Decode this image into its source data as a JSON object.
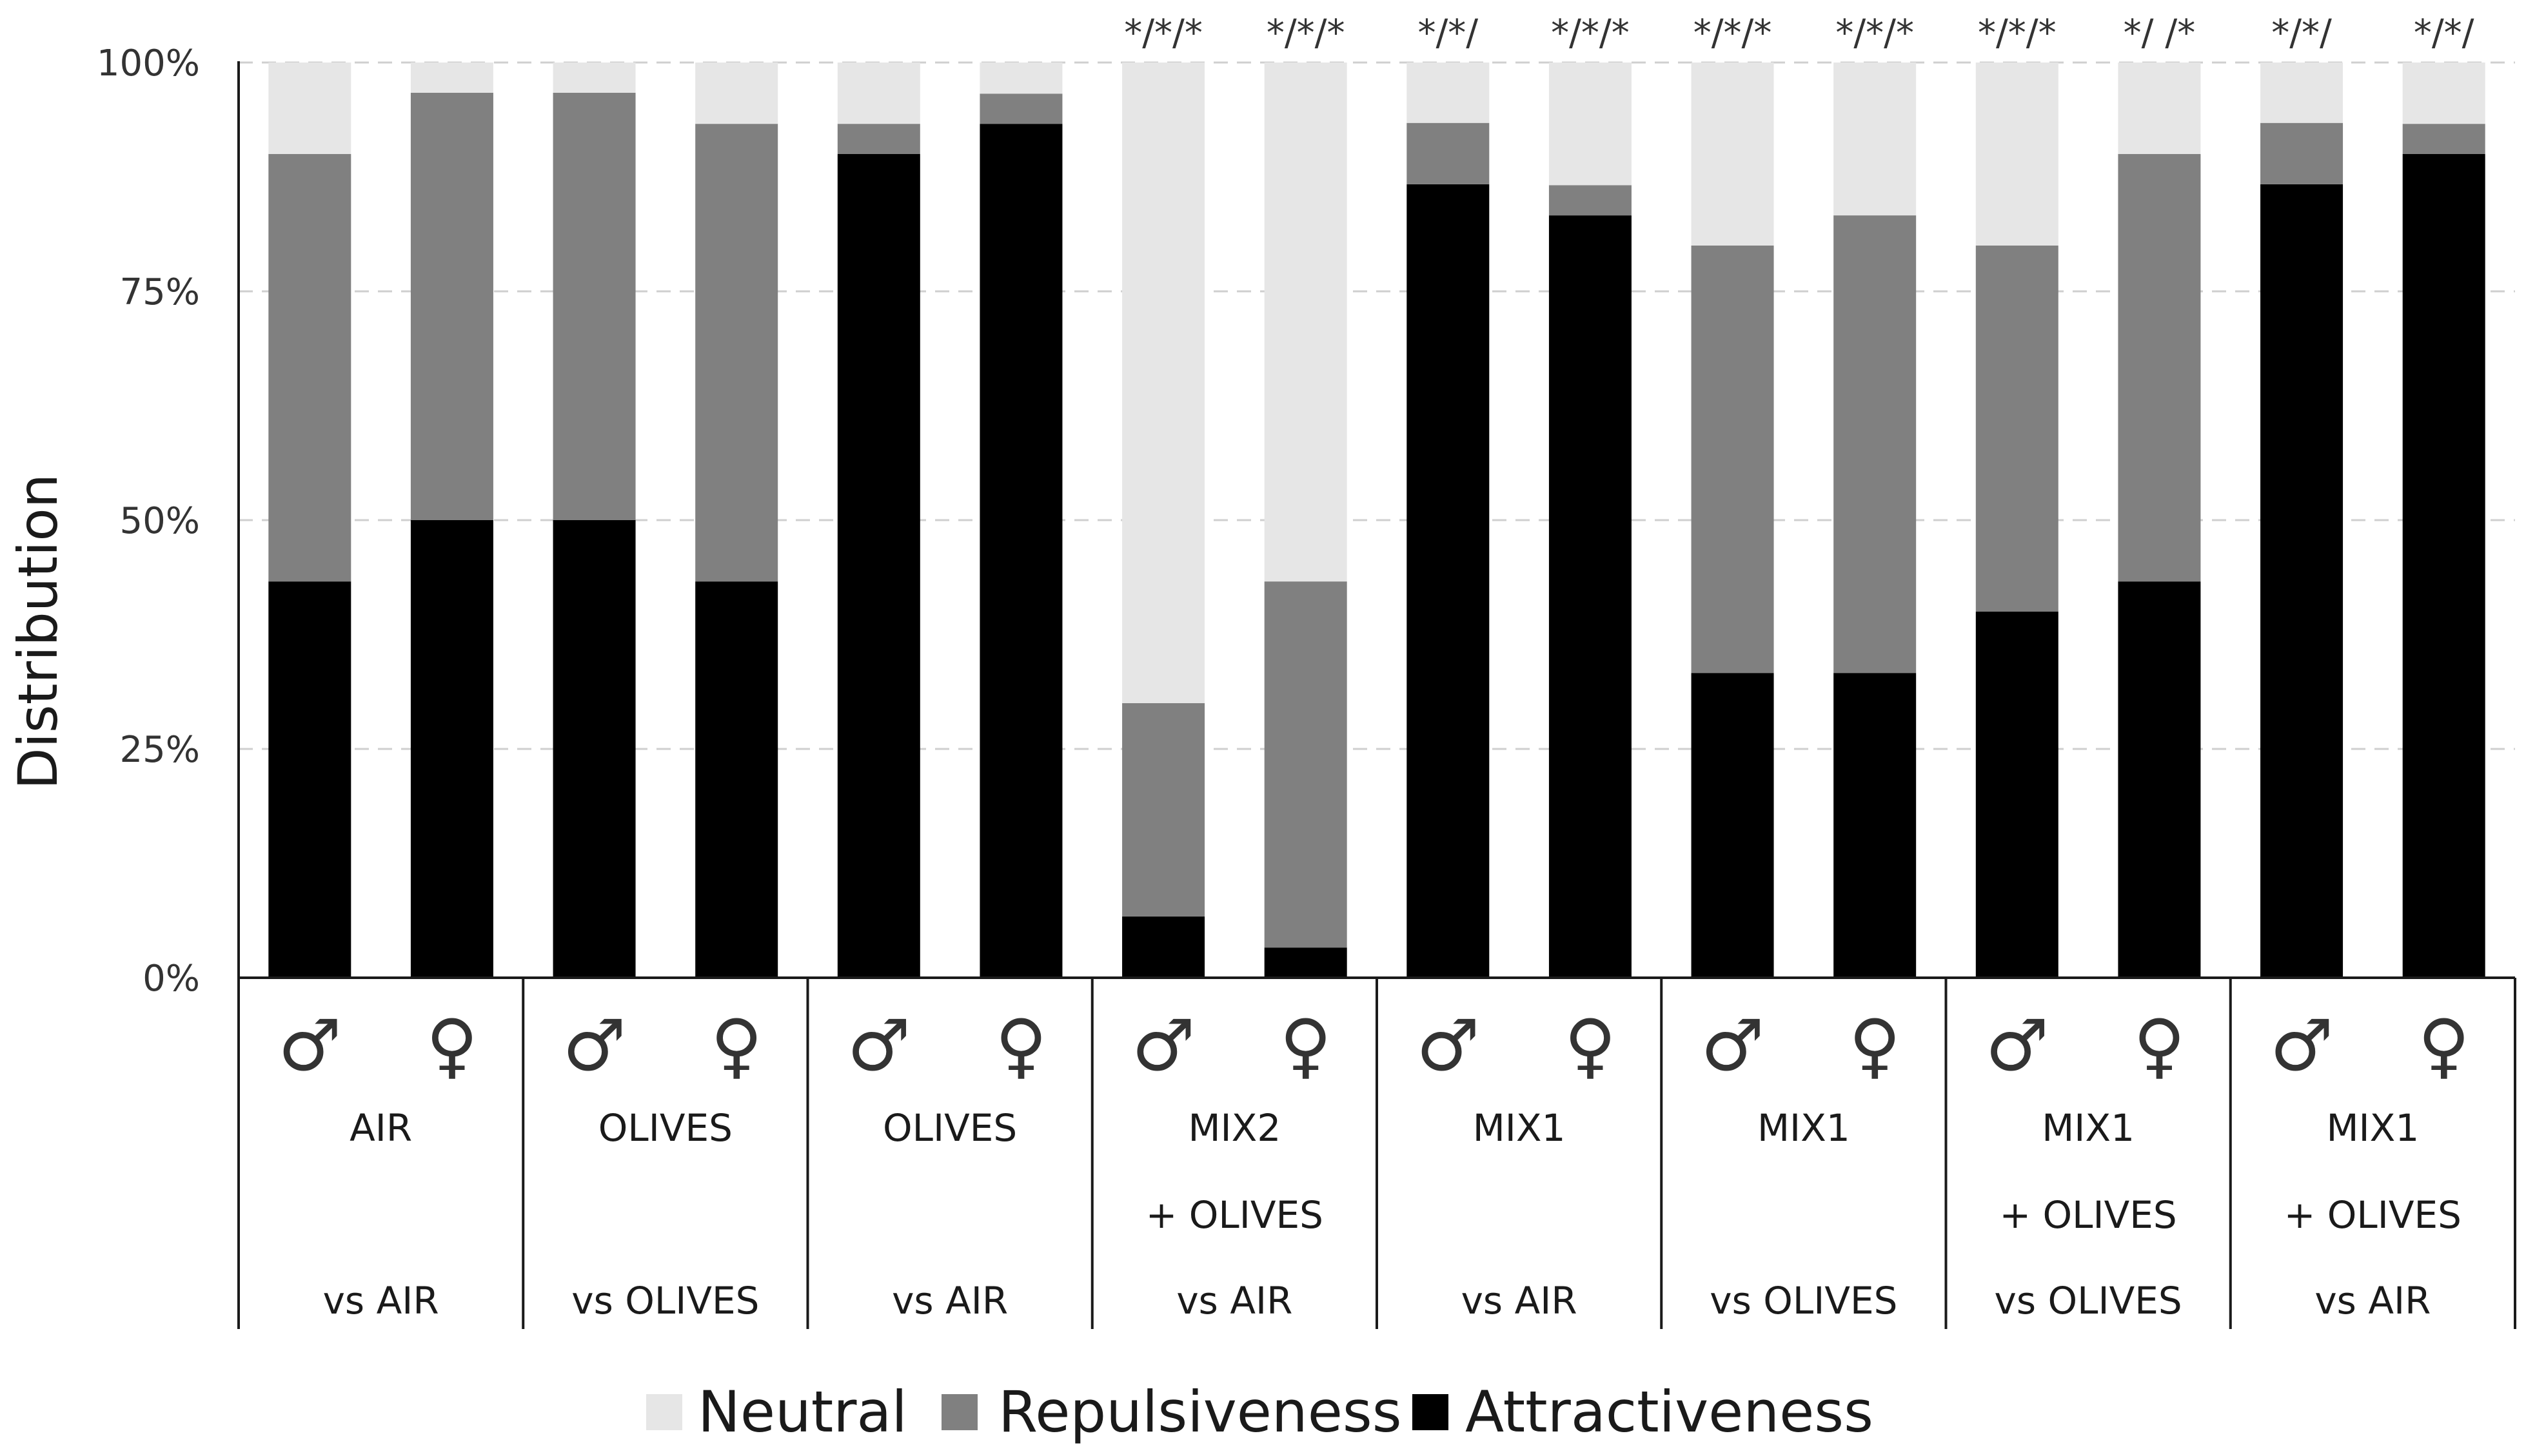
{
  "chart_data": {
    "type": "bar",
    "stacked": true,
    "title": "",
    "xlabel": "",
    "ylabel": "Distribution",
    "ylim": [
      0,
      100
    ],
    "yticks": [
      "0%",
      "25%",
      "50%",
      "75%",
      "100%"
    ],
    "grid": true,
    "legend_position": "bottom",
    "legend": [
      "Neutral",
      "Repulsiveness",
      "Attractiveness"
    ],
    "colors": {
      "Attractiveness": "#000000",
      "Repulsiveness": "#808080",
      "Neutral": "#e6e6e6"
    },
    "categories": [
      "AIR vs AIR ♂",
      "AIR vs AIR ♀",
      "OLIVES vs OLIVES ♂",
      "OLIVES vs OLIVES ♀",
      "OLIVES vs AIR ♂",
      "OLIVES vs AIR ♀",
      "MIX2 + OLIVES vs AIR ♂",
      "MIX2 + OLIVES vs AIR ♀",
      "MIX1 vs AIR ♂",
      "MIX1 vs AIR ♀",
      "MIX1 vs OLIVES ♂",
      "MIX1 vs OLIVES ♀",
      "MIX1 + OLIVES vs OLIVES ♂",
      "MIX1 + OLIVES vs OLIVES ♀",
      "MIX1 + OLIVES vs AIR ♂",
      "MIX1 + OLIVES vs AIR ♀"
    ],
    "series": [
      {
        "name": "Attractiveness",
        "values": [
          43.3,
          50,
          50,
          43.3,
          90,
          93.3,
          6.7,
          3.3,
          86.7,
          83.3,
          33.3,
          33.3,
          40,
          43.3,
          86.7,
          90
        ]
      },
      {
        "name": "Repulsiveness",
        "values": [
          46.7,
          46.7,
          46.7,
          50,
          3.3,
          3.3,
          23.3,
          40,
          6.7,
          3.3,
          46.7,
          50,
          40,
          46.7,
          6.7,
          3.3
        ]
      },
      {
        "name": "Neutral",
        "values": [
          10,
          3.3,
          3.3,
          6.7,
          6.7,
          3.4,
          70,
          56.7,
          6.6,
          13.4,
          20,
          16.7,
          20,
          10,
          6.6,
          6.7
        ]
      }
    ],
    "significance": [
      "",
      "",
      "",
      "",
      "",
      "",
      "*/*/*",
      "*/*/*",
      "*/*/",
      "*/*/*",
      "*/*/*",
      "*/*/*",
      "*/*/*",
      "*/ /*",
      "*/*/",
      "*/*/"
    ],
    "sexes": [
      "♂",
      "♀",
      "♂",
      "♀",
      "♂",
      "♀",
      "♂",
      "♀",
      "♂",
      "♀",
      "♂",
      "♀",
      "♂",
      "♀",
      "♂",
      "♀"
    ],
    "groups": [
      {
        "line1": "AIR",
        "line2": "",
        "line3": "vs AIR"
      },
      {
        "line1": "OLIVES",
        "line2": "",
        "line3": "vs OLIVES"
      },
      {
        "line1": "OLIVES",
        "line2": "",
        "line3": "vs AIR"
      },
      {
        "line1": "MIX2",
        "line2": "+ OLIVES",
        "line3": "vs AIR"
      },
      {
        "line1": "MIX1",
        "line2": "",
        "line3": "vs AIR"
      },
      {
        "line1": "MIX1",
        "line2": "",
        "line3": "vs OLIVES"
      },
      {
        "line1": "MIX1",
        "line2": "+ OLIVES",
        "line3": "vs OLIVES"
      },
      {
        "line1": "MIX1",
        "line2": "+ OLIVES",
        "line3": "vs AIR"
      }
    ]
  }
}
